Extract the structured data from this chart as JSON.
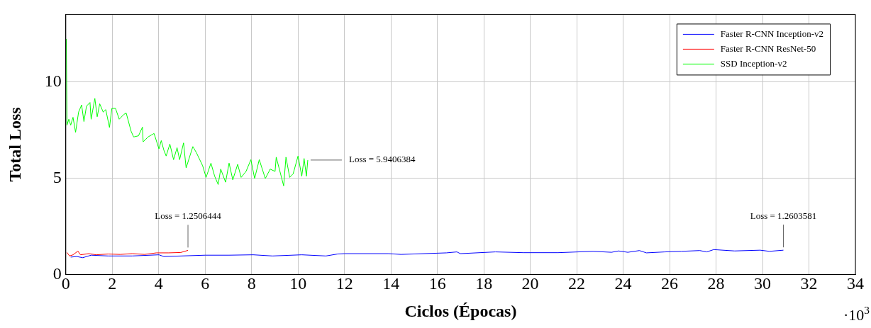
{
  "chart_data": {
    "type": "line",
    "xlabel": "Ciclos (Épocas)",
    "ylabel": "Total Loss",
    "xlim": [
      0,
      34
    ],
    "xticks": [
      0,
      2,
      4,
      6,
      8,
      10,
      12,
      14,
      16,
      18,
      20,
      22,
      24,
      26,
      28,
      30,
      32,
      34
    ],
    "ylim": [
      0,
      13.5
    ],
    "yticks": [
      0,
      5,
      10
    ],
    "grid": true,
    "legend": "top right",
    "marker": "none",
    "line_style": "solid",
    "annotations": [
      {
        "text": "Loss = 5.9406384",
        "x": 10.42,
        "y": 5.94
      },
      {
        "text": "Loss = 1.2506444",
        "x": 5.26,
        "y": 1.25
      },
      {
        "text": "Loss = 1.2603581",
        "x": 30.9,
        "y": 1.26
      },
      "·10$^{3}$"
    ],
    "series": [
      {
        "name": "Faster R-CNN Inception-v2",
        "color": "#0000ff",
        "x": [
          0.21,
          0.47,
          0.73,
          1.09,
          1.82,
          2.86,
          4.01,
          4.22,
          6.0,
          7.03,
          8.07,
          8.9,
          10.16,
          11.2,
          11.7,
          12,
          13.9,
          14.43,
          16.39,
          16.84,
          16.99,
          18.5,
          19.7,
          21.2,
          22.7,
          23.5,
          23.8,
          24.2,
          24.7,
          25.0,
          25.8,
          26.5,
          27.3,
          27.6,
          27.9,
          28.8,
          29.9,
          30.3,
          30.9
        ],
        "values": [
          0.9,
          0.93,
          0.87,
          1.0,
          0.96,
          0.96,
          1.02,
          0.93,
          1.0,
          1.0,
          1.02,
          0.96,
          1.02,
          0.96,
          1.06,
          1.08,
          1.08,
          1.04,
          1.12,
          1.17,
          1.08,
          1.17,
          1.13,
          1.13,
          1.2,
          1.15,
          1.22,
          1.15,
          1.24,
          1.12,
          1.17,
          1.2,
          1.24,
          1.17,
          1.29,
          1.22,
          1.26,
          1.2,
          1.26
        ]
      },
      {
        "name": "Faster R-CNN ResNet-50",
        "color": "#ff0000",
        "x": [
          0.05,
          0.16,
          0.31,
          0.52,
          0.63,
          0.99,
          1.3,
          1.82,
          2.34,
          2.86,
          3.39,
          3.9,
          4.43,
          4.95,
          5.26
        ],
        "values": [
          1.14,
          0.96,
          1.02,
          1.21,
          1.02,
          1.08,
          1.02,
          1.06,
          1.04,
          1.08,
          1.04,
          1.12,
          1.12,
          1.14,
          1.25
        ]
      },
      {
        "name": "SSD Inception-v2",
        "color": "#00ff00",
        "x": [
          0.02,
          0.05,
          0.13,
          0.21,
          0.31,
          0.42,
          0.55,
          0.68,
          0.78,
          0.89,
          1.04,
          1.09,
          1.25,
          1.35,
          1.46,
          1.61,
          1.72,
          1.88,
          1.98,
          2.14,
          2.3,
          2.5,
          2.6,
          2.81,
          2.92,
          3.13,
          3.3,
          3.33,
          3.54,
          3.8,
          4.01,
          4.11,
          4.22,
          4.32,
          4.48,
          4.64,
          4.79,
          4.9,
          5.07,
          5.18,
          5.47,
          5.62,
          5.89,
          6.04,
          6.25,
          6.41,
          6.56,
          6.67,
          6.88,
          7.03,
          7.19,
          7.4,
          7.55,
          7.76,
          7.97,
          8.13,
          8.33,
          8.59,
          8.8,
          9.01,
          9.06,
          9.22,
          9.38,
          9.48,
          9.64,
          9.79,
          10.0,
          10.16,
          10.26,
          10.36,
          10.42
        ],
        "values": [
          12.23,
          7.75,
          8.06,
          7.75,
          8.16,
          7.38,
          8.43,
          8.8,
          7.94,
          8.74,
          8.93,
          8.06,
          9.14,
          8.19,
          8.86,
          8.43,
          8.56,
          7.63,
          8.62,
          8.62,
          8.06,
          8.31,
          8.38,
          7.44,
          7.14,
          7.2,
          7.65,
          6.89,
          7.14,
          7.32,
          6.52,
          6.95,
          6.46,
          6.15,
          6.77,
          5.96,
          6.58,
          5.96,
          6.83,
          5.53,
          6.64,
          6.33,
          5.65,
          5.04,
          5.78,
          5.1,
          4.67,
          5.47,
          4.79,
          5.78,
          4.91,
          5.72,
          5.04,
          5.35,
          5.96,
          4.98,
          5.96,
          4.98,
          5.47,
          5.35,
          6.09,
          5.35,
          4.6,
          6.09,
          5.04,
          5.23,
          6.15,
          5.1,
          6.02,
          5.1,
          5.94
        ]
      }
    ]
  }
}
